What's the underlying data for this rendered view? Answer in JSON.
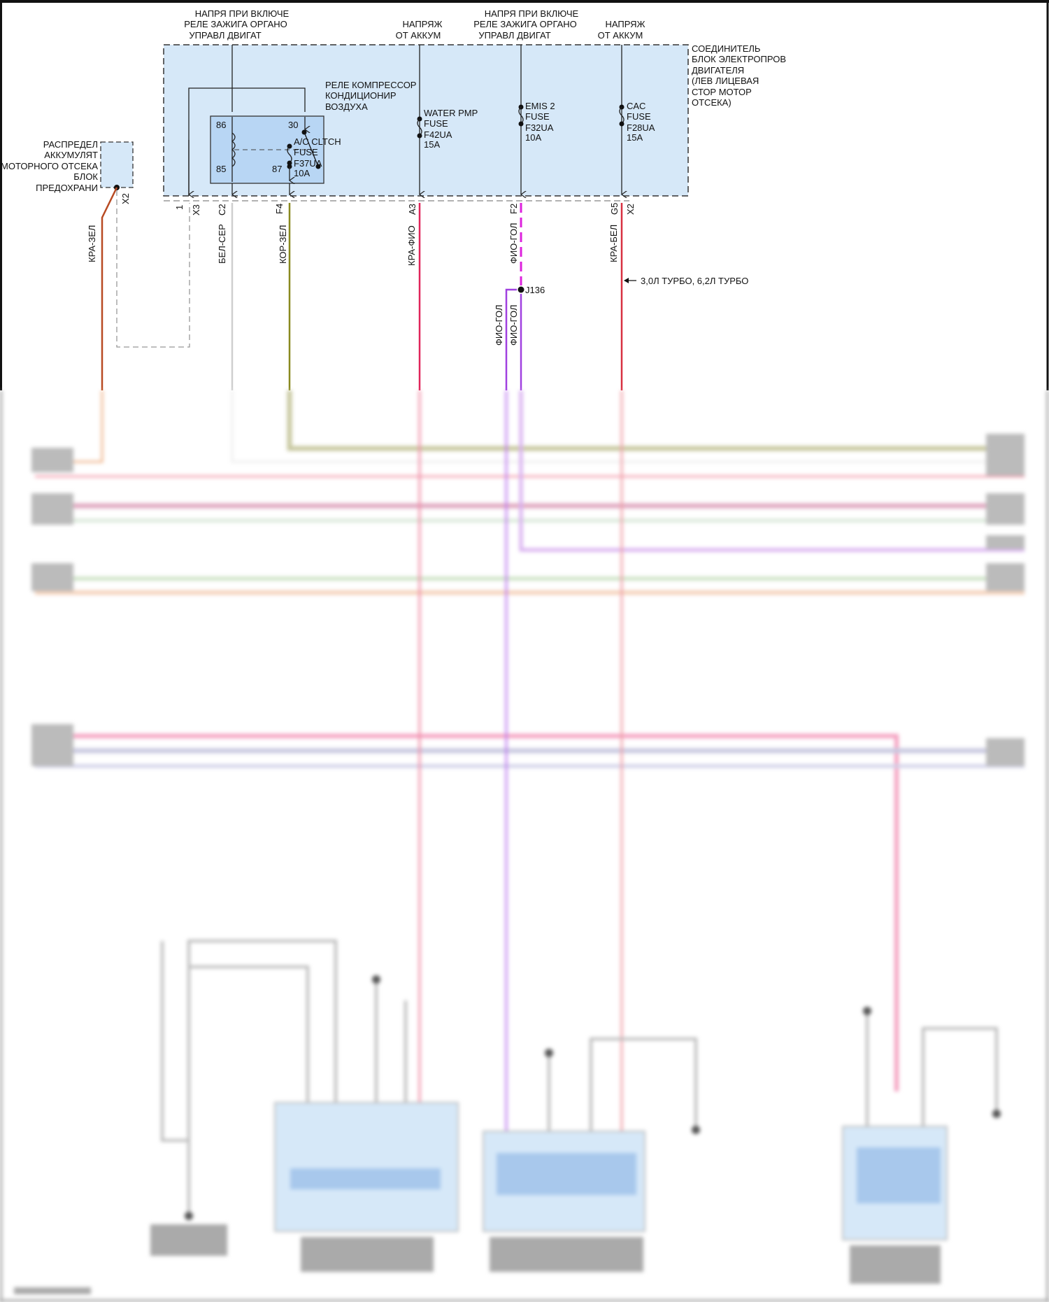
{
  "header_labels": {
    "ign1": [
      "НАПРЯ ПРИ ВКЛЮЧЕ",
      "РЕЛЕ ЗАЖИГА ОРГАНО",
      "УПРАВЛ ДВИГАТ"
    ],
    "batt1": [
      "НАПРЯЖ",
      "ОТ АККУМ"
    ],
    "ign2": [
      "НАПРЯ ПРИ ВКЛЮЧЕ",
      "РЕЛЕ ЗАЖИГА ОРГАНО",
      "УПРАВЛ ДВИГАТ"
    ],
    "batt2": [
      "НАПРЯЖ",
      "ОТ АККУМ"
    ]
  },
  "connector_block": [
    "СОЕДИНИТЕЛЬ",
    "БЛОК ЭЛЕКТРОПРОВ",
    "ДВИГАТЕЛЯ",
    "(ЛЕВ ЛИЦЕВАЯ",
    "СТОР МОТОР",
    "ОТСЕКА)"
  ],
  "distribution_block": [
    "РАСПРЕДЕЛ",
    "АККУМУЛЯТ",
    "МОТОРНОГО ОТСЕКА",
    "БЛОК",
    "ПРЕДОХРАНИ"
  ],
  "relay": {
    "label": [
      "РЕЛЕ КОМПРЕССОР",
      "КОНДИЦИОНИР",
      "ВОЗДУХА"
    ],
    "pins": {
      "p86": "86",
      "p30": "30",
      "p85": "85",
      "p87": "87"
    }
  },
  "fuses": {
    "ac_clutch": [
      "A/C CLTCH",
      "FUSE",
      "F37UA",
      "10A"
    ],
    "water_pump": [
      "WATER PMP",
      "FUSE",
      "F42UA",
      "15A"
    ],
    "emis2": [
      "EMIS 2",
      "FUSE",
      "F32UA",
      "10A"
    ],
    "cac": [
      "CAC",
      "FUSE",
      "F28UA",
      "15A"
    ]
  },
  "pins": {
    "x3_num": "1",
    "x3": "X3",
    "c2": "C2",
    "f4": "F4",
    "a3": "A3",
    "f2": "F2",
    "g5": "G5",
    "x2_right": "X2",
    "x2_left": "X2"
  },
  "wires": {
    "kra_zel": {
      "label": "КРА-ЗЕЛ",
      "color": "#b84a22"
    },
    "bel_ser": {
      "label": "БЕЛ-СЕР",
      "color": "#cfcfcf"
    },
    "kor_zel": {
      "label": "КОР-ЗЕЛ",
      "color": "#8a8a20"
    },
    "kra_fio": {
      "label": "КРА-ФИО",
      "color": "#e0245a"
    },
    "fio_gol_top": {
      "label": "ФИО-ГОЛ",
      "color": "#dd22dd"
    },
    "fio_gol_a": {
      "label": "ФИО-ГОЛ",
      "color": "#a040e0"
    },
    "fio_gol_b": {
      "label": "ФИО-ГОЛ",
      "color": "#a040e0"
    },
    "kra_bel": {
      "label": "КРА-БЕЛ",
      "color": "#d83040"
    }
  },
  "splice": "J136",
  "option_note": "3,0Л ТУРБО, 6,2Л ТУРБО",
  "colors": {
    "block_fill": "#d6e8f8",
    "relay_fill": "#b8d6f4"
  }
}
